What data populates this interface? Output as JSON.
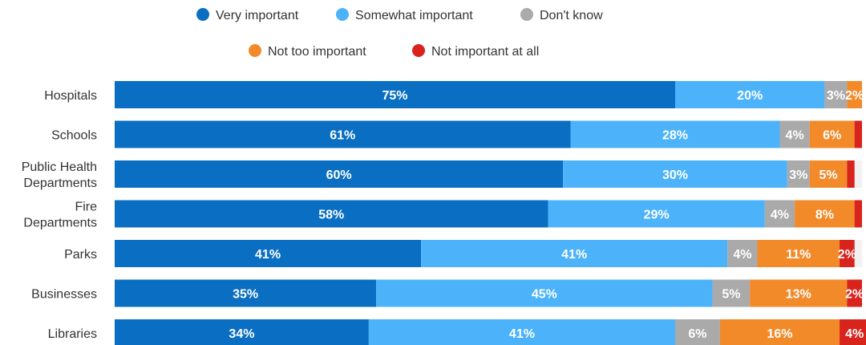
{
  "chart_data": {
    "type": "bar",
    "orientation": "horizontal",
    "stacked": true,
    "title": "",
    "xlabel": "",
    "ylabel": "",
    "legend_position": "top",
    "grid": false,
    "xlim": [
      0,
      100
    ],
    "unit": "%",
    "categories": [
      [
        "Hospitals"
      ],
      [
        "Schools"
      ],
      [
        "Public Health",
        "Departments"
      ],
      [
        "Fire",
        "Departments"
      ],
      [
        "Parks"
      ],
      [
        "Businesses"
      ],
      [
        "Libraries"
      ]
    ],
    "series": [
      {
        "name": "Very important",
        "color": "#0a6fc2",
        "values": [
          75,
          61,
          60,
          58,
          41,
          35,
          34
        ]
      },
      {
        "name": "Somewhat important",
        "color": "#4cb3fb",
        "values": [
          20,
          28,
          30,
          29,
          41,
          45,
          41
        ]
      },
      {
        "name": "Don't know",
        "color": "#aaaaaa",
        "values": [
          3,
          4,
          3,
          4,
          4,
          5,
          6
        ]
      },
      {
        "name": "Not too important",
        "color": "#f28a2a",
        "values": [
          2,
          6,
          5,
          8,
          11,
          13,
          16
        ]
      },
      {
        "name": "Not important at all",
        "color": "#d9231d",
        "values": [
          0,
          1,
          1,
          1,
          2,
          2,
          4
        ]
      }
    ],
    "data_labels": [
      [
        "75%",
        "20%",
        "3%",
        "2%",
        ""
      ],
      [
        "61%",
        "28%",
        "4%",
        "6%",
        ""
      ],
      [
        "60%",
        "30%",
        "3%",
        "5%",
        ""
      ],
      [
        "58%",
        "29%",
        "4%",
        "8%",
        ""
      ],
      [
        "41%",
        "41%",
        "4%",
        "11%",
        "2%"
      ],
      [
        "35%",
        "45%",
        "5%",
        "13%",
        "2%"
      ],
      [
        "34%",
        "41%",
        "6%",
        "16%",
        "4%"
      ]
    ]
  }
}
